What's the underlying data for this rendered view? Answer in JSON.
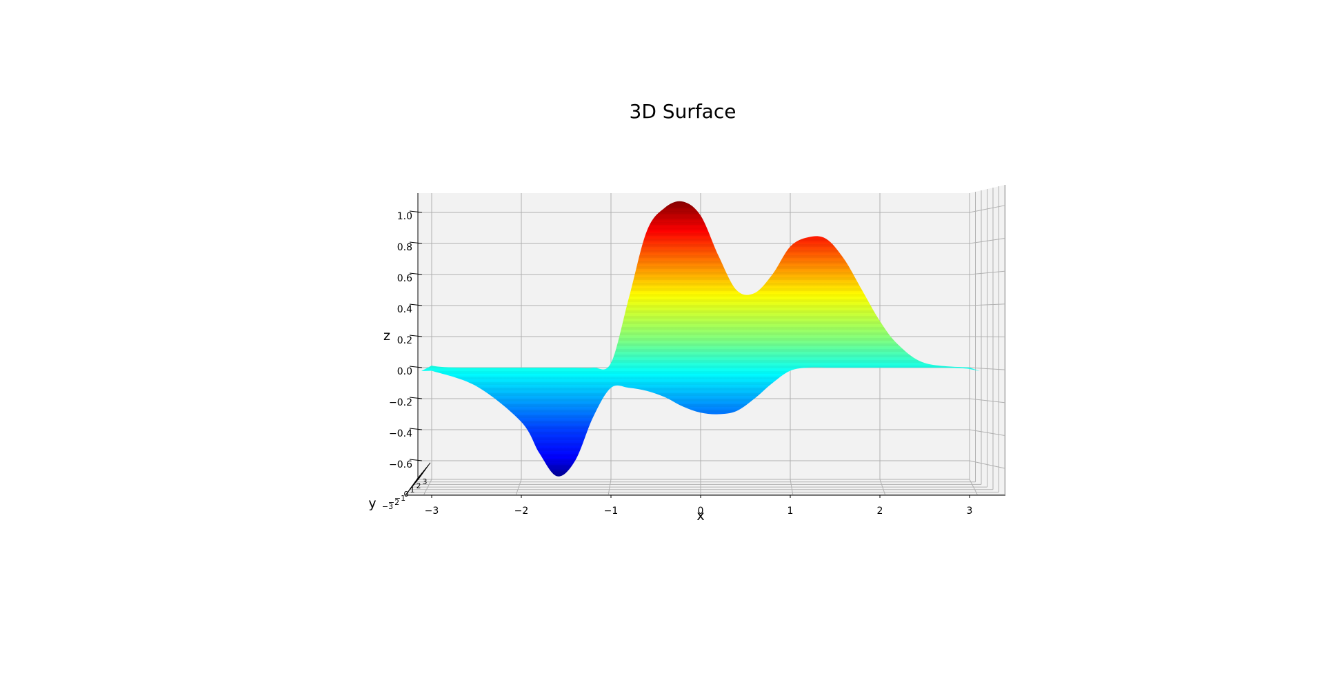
{
  "chart_data": {
    "type": "surface",
    "title": "3D Surface",
    "xlabel": "x",
    "ylabel": "y",
    "zlabel": "z",
    "colormap": "jet",
    "xlim": [
      -3.3,
      3.3
    ],
    "ylim": [
      -3.3,
      3.3
    ],
    "zlim": [
      -0.72,
      1.08
    ],
    "x_ticks": [
      -3,
      -2,
      -1,
      0,
      1,
      2,
      3
    ],
    "x_tick_labels": [
      "−3",
      "−2",
      "−1",
      "0",
      "1",
      "2",
      "3"
    ],
    "z_ticks": [
      -0.6,
      -0.4,
      -0.2,
      0.0,
      0.2,
      0.4,
      0.6,
      0.8,
      1.0
    ],
    "z_tick_labels": [
      "−0.6",
      "−0.4",
      "−0.2",
      "0.0",
      "0.2",
      "0.4",
      "0.6",
      "0.8",
      "1.0"
    ],
    "y_tick_labels": [
      "−3",
      "−2",
      "−1",
      "0",
      "1",
      "2",
      "3"
    ],
    "grid": true,
    "pane_color": "#f2f2f2",
    "grid_color": "#b0b0b0",
    "surface_profile": {
      "x": [
        -3.0,
        -2.5,
        -2.0,
        -1.8,
        -1.6,
        -1.4,
        -1.2,
        -1.0,
        -0.8,
        -0.6,
        -0.4,
        -0.2,
        0.0,
        0.2,
        0.4,
        0.6,
        0.8,
        1.0,
        1.2,
        1.4,
        1.6,
        1.8,
        2.0,
        2.2,
        2.5,
        3.0
      ],
      "z_max": [
        0.0,
        0.0,
        0.0,
        0.0,
        0.0,
        0.0,
        0.0,
        0.03,
        0.45,
        0.88,
        1.03,
        1.07,
        0.98,
        0.72,
        0.5,
        0.48,
        0.6,
        0.78,
        0.84,
        0.83,
        0.7,
        0.5,
        0.3,
        0.15,
        0.03,
        0.0
      ],
      "z_min": [
        -0.02,
        -0.12,
        -0.35,
        -0.55,
        -0.7,
        -0.6,
        -0.32,
        -0.13,
        -0.13,
        -0.15,
        -0.19,
        -0.25,
        -0.29,
        -0.3,
        -0.28,
        -0.2,
        -0.1,
        -0.02,
        0.0,
        0.0,
        0.0,
        0.0,
        0.0,
        0.0,
        0.0,
        0.0
      ]
    }
  }
}
